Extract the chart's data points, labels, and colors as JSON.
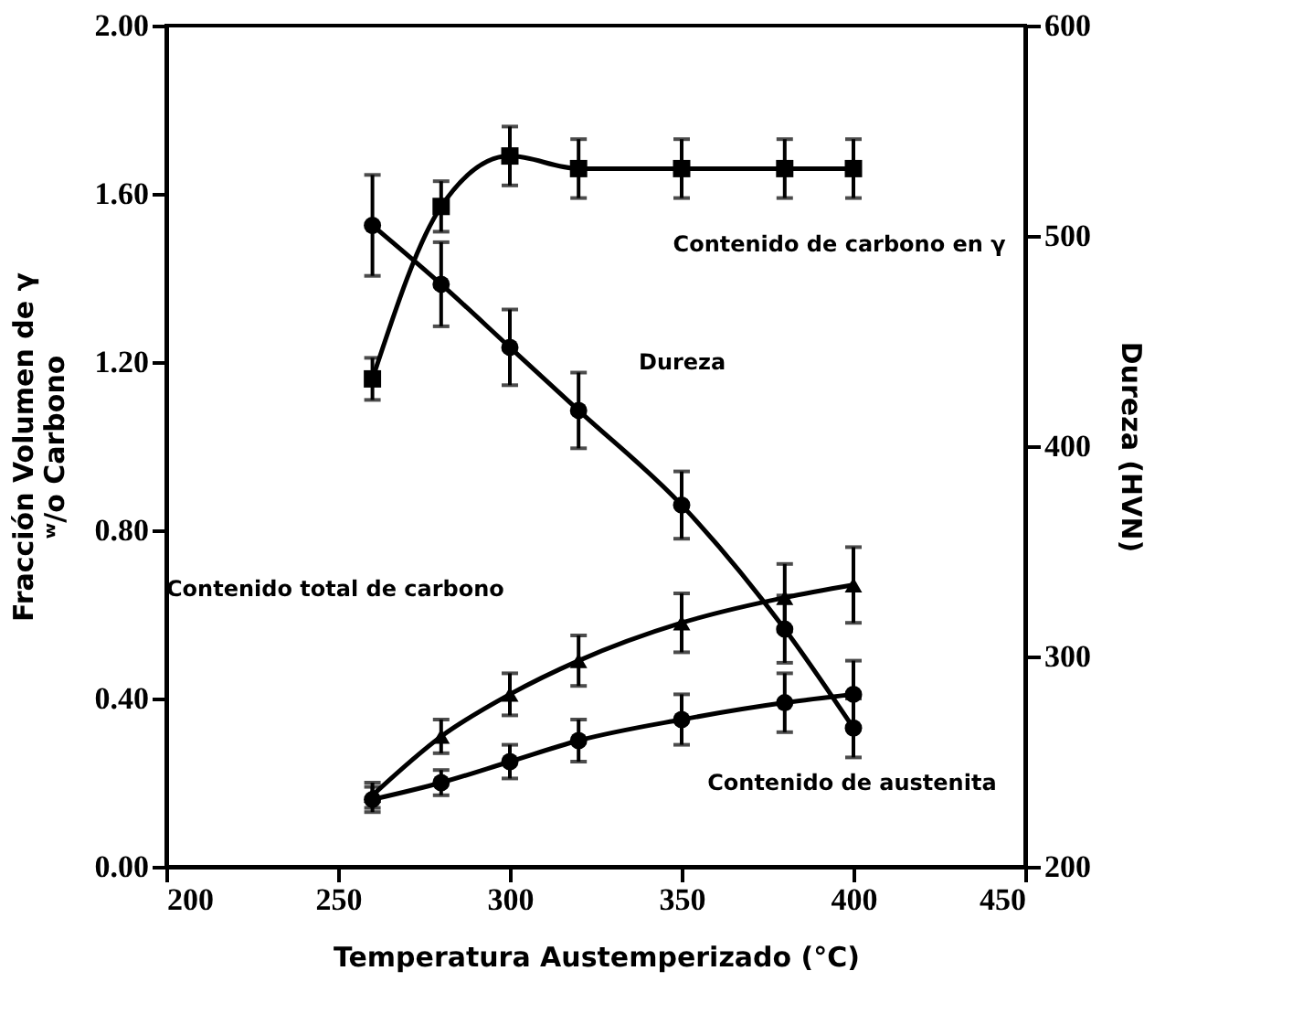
{
  "chart_data": {
    "type": "line",
    "xlabel": "Temperatura Austemperizado (°C)",
    "ylabel": "Fracción Volumen de γ\nʷ/o Carbono",
    "y2label": "Dureza (HVN)",
    "xlim": [
      200,
      450
    ],
    "xticks": [
      200,
      250,
      300,
      350,
      400,
      450
    ],
    "ylim": [
      0,
      2
    ],
    "yticks": [
      {
        "value": 0,
        "label": "0.00"
      },
      {
        "value": 0.4,
        "label": "0.40"
      },
      {
        "value": 0.8,
        "label": "0.80"
      },
      {
        "value": 1.2,
        "label": "1.20"
      },
      {
        "value": 1.6,
        "label": "1.60"
      },
      {
        "value": 2,
        "label": "2.00"
      }
    ],
    "y2lim": [
      200,
      600
    ],
    "y2ticks": [
      200,
      300,
      400,
      500,
      600
    ],
    "grid": false,
    "line_style": "solid",
    "series": [
      {
        "color": "#000000",
        "marker": "square",
        "x": [
          260,
          280,
          300,
          320,
          350,
          380,
          400
        ],
        "values": [
          1.16,
          1.57,
          1.69,
          1.66,
          1.66,
          1.66,
          1.66
        ],
        "errors": [
          0.05,
          0.06,
          0.07,
          0.07,
          0.07,
          0.07,
          0.07
        ]
      },
      {
        "color": "#000000",
        "marker": "circle",
        "axis": "y2",
        "x": [
          260,
          280,
          300,
          320,
          350,
          380,
          400
        ],
        "values": [
          505,
          477,
          447,
          417,
          372,
          313,
          266
        ],
        "errors": [
          24,
          20,
          18,
          18,
          16,
          16,
          14
        ]
      },
      {
        "color": "#000000",
        "marker": "triangle",
        "x": [
          260,
          280,
          300,
          320,
          350,
          380,
          400
        ],
        "values": [
          0.17,
          0.31,
          0.41,
          0.49,
          0.58,
          0.64,
          0.67
        ],
        "errors": [
          0.03,
          0.04,
          0.05,
          0.06,
          0.07,
          0.08,
          0.09
        ]
      },
      {
        "color": "#000000",
        "marker": "circle",
        "x": [
          260,
          280,
          300,
          320,
          350,
          380,
          400
        ],
        "values": [
          0.16,
          0.2,
          0.25,
          0.3,
          0.35,
          0.39,
          0.41
        ],
        "errors": [
          0.03,
          0.03,
          0.04,
          0.05,
          0.06,
          0.07,
          0.08
        ]
      }
    ],
    "annotations": [
      "Contenido de carbono en γ",
      "Dureza",
      "Contenido total de carbono",
      "Contenido de austenita"
    ]
  }
}
